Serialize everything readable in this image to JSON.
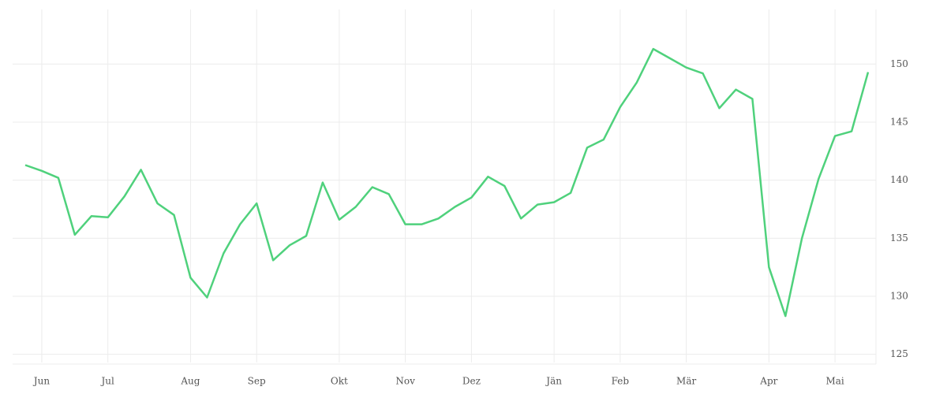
{
  "chart_data": {
    "type": "line",
    "categories": [
      null,
      "Jun",
      null,
      null,
      null,
      "Jul",
      null,
      null,
      null,
      null,
      "Aug",
      null,
      null,
      null,
      "Sep",
      null,
      null,
      null,
      null,
      "Okt",
      null,
      null,
      null,
      "Nov",
      null,
      null,
      null,
      "Dez",
      null,
      null,
      null,
      null,
      "Jän",
      null,
      null,
      null,
      "Feb",
      null,
      null,
      null,
      "Mär",
      null,
      null,
      null,
      null,
      "Apr",
      null,
      null,
      null,
      "Mai",
      null,
      null
    ],
    "series": [
      {
        "color": "#4fd17c",
        "values": [
          141.3,
          140.8,
          140.2,
          135.3,
          136.9,
          136.8,
          138.6,
          140.9,
          138.0,
          137.0,
          131.6,
          129.9,
          133.7,
          136.2,
          138.0,
          133.1,
          134.4,
          135.2,
          139.8,
          136.6,
          137.7,
          139.4,
          138.8,
          136.2,
          136.2,
          136.7,
          137.7,
          138.5,
          140.3,
          139.5,
          136.7,
          137.9,
          138.1,
          138.9,
          142.8,
          143.5,
          146.3,
          148.4,
          151.3,
          150.5,
          149.7,
          149.2,
          146.2,
          147.8,
          147.0,
          132.5,
          128.3,
          135.0,
          140.1,
          143.8,
          144.2,
          149.3
        ]
      }
    ],
    "ylim": [
      124.3,
      154.7
    ],
    "yticks": [
      125,
      130,
      135,
      140,
      145,
      150
    ],
    "grid": true
  }
}
